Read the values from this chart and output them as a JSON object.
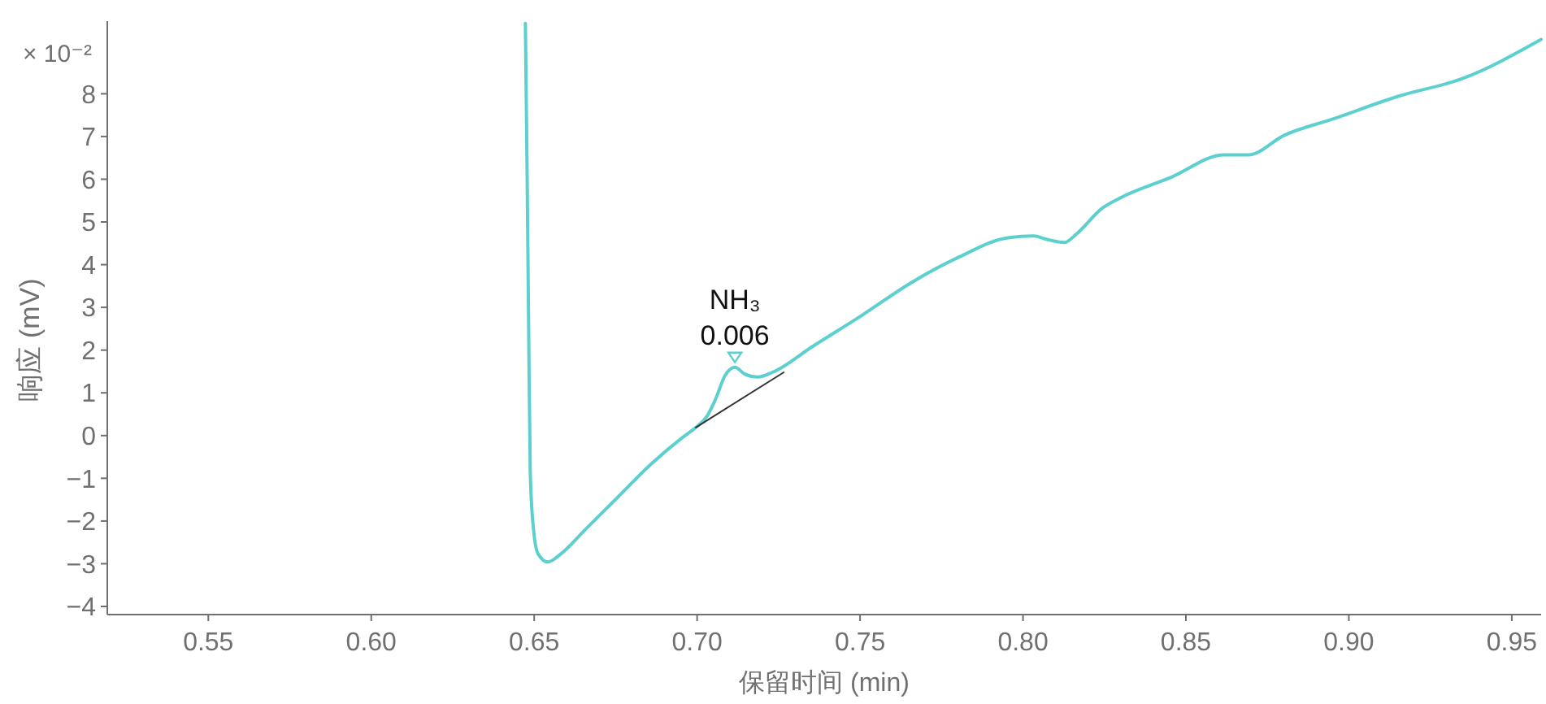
{
  "chart_data": {
    "type": "line",
    "xlabel": "保留时间 (min)",
    "ylabel": "响应 (mV)",
    "xlim": [
      0.519,
      0.959
    ],
    "ylim": [
      -4.19,
      9.7
    ],
    "xticks": [
      {
        "value": 0.55,
        "label": "0.55"
      },
      {
        "value": 0.6,
        "label": "0.60"
      },
      {
        "value": 0.65,
        "label": "0.65"
      },
      {
        "value": 0.7,
        "label": "0.70"
      },
      {
        "value": 0.75,
        "label": "0.75"
      },
      {
        "value": 0.8,
        "label": "0.80"
      },
      {
        "value": 0.85,
        "label": "0.85"
      },
      {
        "value": 0.9,
        "label": "0.90"
      },
      {
        "value": 0.95,
        "label": "0.95"
      }
    ],
    "yticks": [
      {
        "value": -4,
        "label": "−4"
      },
      {
        "value": -3,
        "label": "−3"
      },
      {
        "value": -2,
        "label": "−2"
      },
      {
        "value": -1,
        "label": "−1"
      },
      0,
      1,
      2,
      3,
      4,
      5,
      6,
      7,
      8
    ],
    "grid": false,
    "marker": "none",
    "line_style": "solid",
    "series": [
      {
        "color": "#5ccfcf",
        "x": [
          0.6473,
          0.6478,
          0.6483,
          0.6488,
          0.6498,
          0.6512,
          0.6542,
          0.6582,
          0.6657,
          0.6757,
          0.6857,
          0.6956,
          0.6996,
          0.7031,
          0.7056,
          0.7086,
          0.7116,
          0.7146,
          0.7186,
          0.7231,
          0.7355,
          0.7505,
          0.7655,
          0.7804,
          0.7954,
          0.8034,
          0.8069,
          0.8128,
          0.8163,
          0.8243,
          0.8303,
          0.8453,
          0.8617,
          0.8692,
          0.8802,
          0.8951,
          0.9151,
          0.935,
          0.959
        ],
        "values": [
          9.65,
          6.34,
          2.54,
          -0.87,
          -2.2,
          -2.77,
          -2.96,
          -2.77,
          -2.2,
          -1.44,
          -0.68,
          -0.04,
          0.19,
          0.46,
          0.84,
          1.41,
          1.6,
          1.44,
          1.37,
          1.48,
          2.09,
          2.81,
          3.57,
          4.18,
          4.63,
          4.67,
          4.6,
          4.52,
          4.71,
          5.32,
          5.58,
          6.04,
          6.57,
          6.57,
          7.03,
          7.41,
          7.94,
          8.36,
          9.27
        ]
      },
      {
        "type": "line",
        "color": "#333333",
        "x": [
          0.6996,
          0.7266
        ],
        "values": [
          0.19,
          1.48
        ]
      }
    ],
    "annotations": [
      "× 10⁻²",
      {
        "text": "NH₃\n0.006",
        "x": 0.7116,
        "y": 1.6
      }
    ]
  }
}
